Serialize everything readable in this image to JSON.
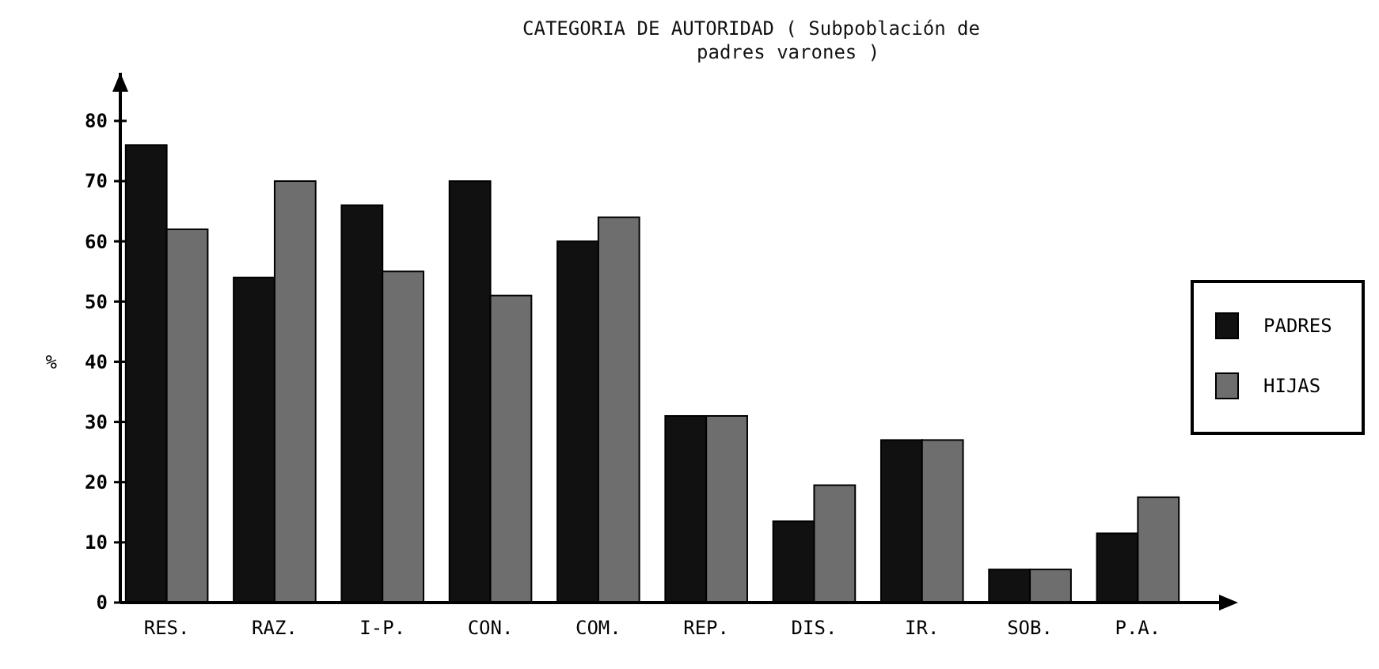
{
  "chart_data": {
    "type": "bar",
    "title": "CATEGORIA DE AUTORIDAD ( Subpoblación de\npadres varones )",
    "ylabel": "%",
    "categories": [
      "RES.",
      "RAZ.",
      "I-P.",
      "CON.",
      "COM.",
      "REP.",
      "DIS.",
      "IR.",
      "SOB.",
      "P.A."
    ],
    "series": [
      {
        "name": "PADRES",
        "color": "#111111",
        "values": [
          76,
          54,
          66,
          70,
          60,
          31,
          13.5,
          27,
          5.5,
          11.5
        ]
      },
      {
        "name": "HIJAS",
        "color": "#6e6e6e",
        "values": [
          62,
          70,
          55,
          51,
          64,
          31,
          19.5,
          27,
          5.5,
          17.5
        ]
      }
    ],
    "ylim": [
      0,
      88
    ],
    "yticks": [
      0,
      10,
      20,
      30,
      40,
      50,
      60,
      70,
      80
    ],
    "grid": false,
    "legend": "right"
  }
}
